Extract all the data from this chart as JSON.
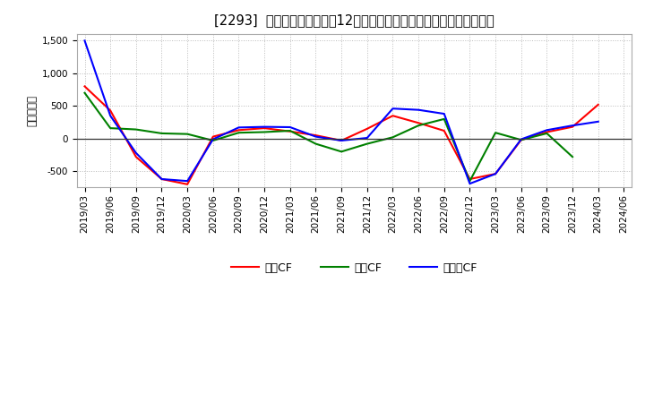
{
  "title": "[2293]  キャッシュフローの12か月移動合計の対前年同期増減額の推移",
  "ylabel": "（百万円）",
  "background_color": "#ffffff",
  "plot_background_color": "#ffffff",
  "grid_color": "#aaaaaa",
  "x_labels": [
    "2019/03",
    "2019/06",
    "2019/09",
    "2019/12",
    "2020/03",
    "2020/06",
    "2020/09",
    "2020/12",
    "2021/03",
    "2021/06",
    "2021/09",
    "2021/12",
    "2022/03",
    "2022/06",
    "2022/09",
    "2022/12",
    "2023/03",
    "2023/06",
    "2023/09",
    "2023/12",
    "2024/03",
    "2024/06"
  ],
  "series": {
    "営業CF": {
      "color": "#ff0000",
      "values": [
        800,
        430,
        -280,
        -620,
        -700,
        30,
        130,
        160,
        110,
        50,
        -30,
        150,
        350,
        240,
        120,
        -620,
        -540,
        -20,
        100,
        180,
        520,
        null
      ]
    },
    "投資CF": {
      "color": "#008000",
      "values": [
        700,
        160,
        140,
        80,
        70,
        -30,
        90,
        100,
        120,
        -80,
        -200,
        -80,
        20,
        200,
        300,
        -650,
        90,
        -20,
        80,
        -280,
        null,
        null
      ]
    },
    "フリーCF": {
      "color": "#0000ff",
      "values": [
        1500,
        350,
        -220,
        -620,
        -650,
        -10,
        170,
        180,
        175,
        30,
        -30,
        10,
        460,
        440,
        380,
        -690,
        -540,
        -10,
        130,
        200,
        260,
        null
      ]
    }
  },
  "ylim": [
    -750,
    1600
  ],
  "yticks": [
    -500,
    0,
    500,
    1000,
    1500
  ],
  "title_fontsize": 10.5,
  "axis_label_fontsize": 8.5,
  "tick_fontsize": 7.5,
  "legend_fontsize": 9
}
